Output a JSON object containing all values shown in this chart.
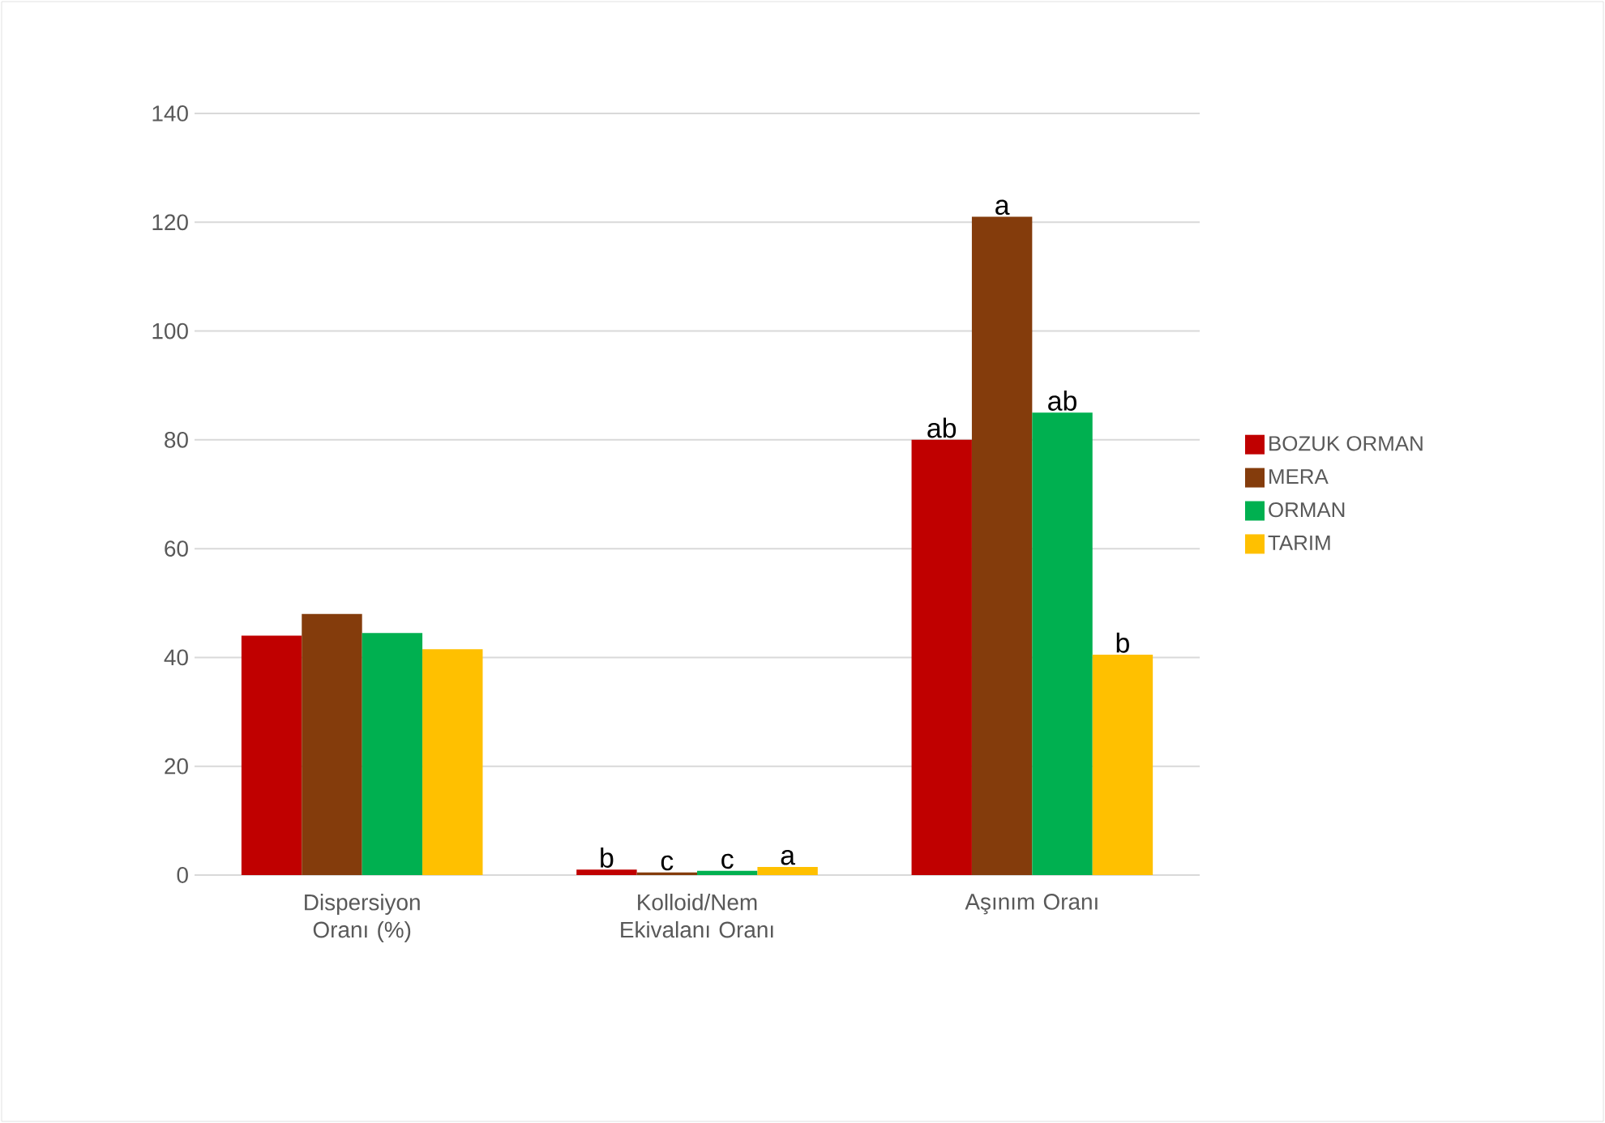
{
  "chart_data": {
    "type": "bar",
    "categories": [
      "Dispersiyon Oranı (%)",
      "Kolloid/Nem Ekivalanı Oranı",
      "Aşınım Oranı"
    ],
    "series": [
      {
        "name": "BOZUK ORMAN",
        "color": "#c00000",
        "values": [
          44,
          1,
          80
        ]
      },
      {
        "name": "MERA",
        "color": "#843c0c",
        "values": [
          48,
          0.5,
          121
        ]
      },
      {
        "name": "ORMAN",
        "color": "#00b050",
        "values": [
          44.5,
          0.8,
          85
        ]
      },
      {
        "name": "TARIM",
        "color": "#ffc000",
        "values": [
          41.5,
          1.5,
          40.5
        ]
      }
    ],
    "ylim": [
      0,
      140
    ],
    "yticks": [
      0,
      20,
      40,
      60,
      80,
      100,
      120,
      140
    ],
    "grid": "y",
    "legend": "right",
    "annotations": [
      "b",
      "c",
      "c",
      "a",
      "ab",
      "a",
      "ab",
      "b"
    ]
  }
}
